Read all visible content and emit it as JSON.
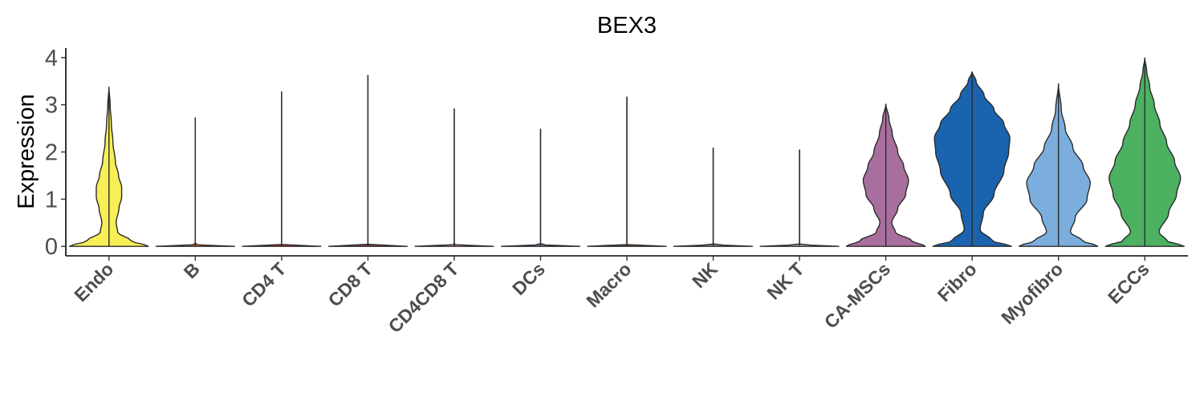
{
  "chart_data": {
    "type": "violin",
    "title": "BEX3",
    "xlabel": "",
    "ylabel": "Expression",
    "ylim": [
      -0.2,
      4.2
    ],
    "yticks": [
      0,
      1,
      2,
      3,
      4
    ],
    "grid": false,
    "legend": "none",
    "groups": [
      {
        "name": "Endo",
        "color": "#F7EF55",
        "max": 3.38,
        "profile": [
          [
            0,
            1.0
          ],
          [
            0.12,
            0.55
          ],
          [
            0.3,
            0.22
          ],
          [
            0.5,
            0.18
          ],
          [
            0.8,
            0.25
          ],
          [
            1.05,
            0.32
          ],
          [
            1.25,
            0.32
          ],
          [
            1.5,
            0.24
          ],
          [
            1.8,
            0.16
          ],
          [
            2.2,
            0.1
          ],
          [
            2.6,
            0.06
          ],
          [
            3.0,
            0.03
          ],
          [
            3.38,
            0.0
          ]
        ]
      },
      {
        "name": "B",
        "color": "#E87B2D",
        "max": 2.73,
        "profile": [
          [
            0,
            1.0
          ],
          [
            0.04,
            0.0
          ]
        ]
      },
      {
        "name": "CD4 T",
        "color": "#D9282F",
        "max": 3.28,
        "profile": [
          [
            0,
            1.0
          ],
          [
            0.04,
            0.0
          ]
        ]
      },
      {
        "name": "CD8 T",
        "color": "#A23F3C",
        "max": 3.63,
        "profile": [
          [
            0,
            1.0
          ],
          [
            0.04,
            0.0
          ]
        ]
      },
      {
        "name": "CD4CD8 T",
        "color": "#E9A3C9",
        "max": 2.92,
        "profile": [
          [
            0,
            1.0
          ],
          [
            0.04,
            0.0
          ]
        ]
      },
      {
        "name": "DCs",
        "color": "#8F6BB1",
        "max": 2.49,
        "profile": [
          [
            0,
            1.0
          ],
          [
            0.04,
            0.0
          ]
        ]
      },
      {
        "name": "Macro",
        "color": "#7A5230",
        "max": 3.17,
        "profile": [
          [
            0,
            1.0
          ],
          [
            0.04,
            0.0
          ]
        ]
      },
      {
        "name": "NK",
        "color": "#8C8C8C",
        "max": 2.09,
        "profile": [
          [
            0,
            1.0
          ],
          [
            0.04,
            0.0
          ]
        ]
      },
      {
        "name": "NK T",
        "color": "#B7B7B7",
        "max": 2.05,
        "profile": [
          [
            0,
            1.0
          ],
          [
            0.04,
            0.0
          ]
        ]
      },
      {
        "name": "CA-MSCs",
        "color": "#A86F9E",
        "max": 3.02,
        "profile": [
          [
            0,
            1.0
          ],
          [
            0.12,
            0.65
          ],
          [
            0.3,
            0.24
          ],
          [
            0.5,
            0.15
          ],
          [
            0.8,
            0.3
          ],
          [
            1.1,
            0.5
          ],
          [
            1.4,
            0.57
          ],
          [
            1.7,
            0.45
          ],
          [
            2.0,
            0.3
          ],
          [
            2.4,
            0.16
          ],
          [
            2.7,
            0.08
          ],
          [
            3.02,
            0.0
          ]
        ]
      },
      {
        "name": "Fibro",
        "color": "#1A63AE",
        "max": 3.7,
        "profile": [
          [
            0,
            1.0
          ],
          [
            0.12,
            0.5
          ],
          [
            0.35,
            0.2
          ],
          [
            0.7,
            0.28
          ],
          [
            1.1,
            0.55
          ],
          [
            1.6,
            0.8
          ],
          [
            2.0,
            0.92
          ],
          [
            2.3,
            0.95
          ],
          [
            2.6,
            0.8
          ],
          [
            2.9,
            0.55
          ],
          [
            3.2,
            0.3
          ],
          [
            3.5,
            0.1
          ],
          [
            3.7,
            0.0
          ]
        ]
      },
      {
        "name": "Myofibro",
        "color": "#7BAEDD",
        "max": 3.45,
        "profile": [
          [
            0,
            1.0
          ],
          [
            0.12,
            0.6
          ],
          [
            0.3,
            0.3
          ],
          [
            0.6,
            0.42
          ],
          [
            1.0,
            0.72
          ],
          [
            1.35,
            0.8
          ],
          [
            1.7,
            0.62
          ],
          [
            2.1,
            0.36
          ],
          [
            2.5,
            0.17
          ],
          [
            2.9,
            0.07
          ],
          [
            3.45,
            0.0
          ]
        ]
      },
      {
        "name": "ECCs",
        "color": "#4CB161",
        "max": 4.0,
        "profile": [
          [
            0,
            1.0
          ],
          [
            0.12,
            0.55
          ],
          [
            0.3,
            0.36
          ],
          [
            0.7,
            0.6
          ],
          [
            1.1,
            0.8
          ],
          [
            1.45,
            0.9
          ],
          [
            1.8,
            0.75
          ],
          [
            2.2,
            0.55
          ],
          [
            2.6,
            0.38
          ],
          [
            3.0,
            0.24
          ],
          [
            3.4,
            0.12
          ],
          [
            3.7,
            0.05
          ],
          [
            4.0,
            0.0
          ]
        ]
      }
    ]
  }
}
